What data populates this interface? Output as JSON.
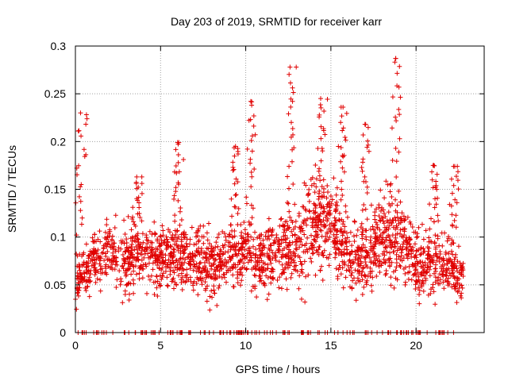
{
  "chart_data": {
    "type": "scatter",
    "title": "Day 203 of 2019, SRMTID for receiver karr",
    "xlabel": "GPS time / hours",
    "ylabel": "SRMTID / TECUs",
    "xlim": [
      0,
      24
    ],
    "ylim": [
      0,
      0.3
    ],
    "xticks": [
      0,
      5,
      10,
      15,
      20
    ],
    "yticks": [
      0,
      0.05,
      0.1,
      0.15,
      0.2,
      0.25,
      0.3
    ],
    "xtick_labels": [
      "0",
      "5",
      "10",
      "15",
      "20"
    ],
    "ytick_labels": [
      "0",
      "0.05",
      "0.1",
      "0.15",
      "0.2",
      "0.25",
      "0.3"
    ],
    "grid": true,
    "marker": "+",
    "series_color": "#e00000",
    "x_range_data": [
      0,
      22.8
    ],
    "envelope": {
      "note": "approximate typical level and spread of the point cloud by hour",
      "hours": [
        0,
        1,
        2,
        3,
        4,
        5,
        6,
        7,
        8,
        9,
        10,
        11,
        12,
        13,
        14,
        15,
        16,
        17,
        18,
        19,
        20,
        21,
        22,
        22.8
      ],
      "center": [
        0.05,
        0.075,
        0.085,
        0.075,
        0.08,
        0.075,
        0.085,
        0.08,
        0.07,
        0.08,
        0.085,
        0.075,
        0.085,
        0.09,
        0.11,
        0.115,
        0.085,
        0.075,
        0.1,
        0.1,
        0.07,
        0.075,
        0.07,
        0.06
      ],
      "spread": [
        0.02,
        0.025,
        0.03,
        0.03,
        0.03,
        0.03,
        0.03,
        0.03,
        0.03,
        0.03,
        0.03,
        0.03,
        0.035,
        0.04,
        0.045,
        0.04,
        0.035,
        0.03,
        0.04,
        0.04,
        0.03,
        0.03,
        0.03,
        0.02
      ]
    },
    "peaks": [
      {
        "x": 0.3,
        "y": 0.23
      },
      {
        "x": 3.6,
        "y": 0.163
      },
      {
        "x": 6.0,
        "y": 0.199
      },
      {
        "x": 9.4,
        "y": 0.195
      },
      {
        "x": 10.3,
        "y": 0.242
      },
      {
        "x": 12.6,
        "y": 0.278
      },
      {
        "x": 14.4,
        "y": 0.245
      },
      {
        "x": 15.6,
        "y": 0.236
      },
      {
        "x": 17.0,
        "y": 0.218
      },
      {
        "x": 18.8,
        "y": 0.287
      },
      {
        "x": 21.0,
        "y": 0.175
      },
      {
        "x": 22.2,
        "y": 0.174
      }
    ],
    "zero_value_points": "many points at y = 0 spread across 0 to 22.8 hours"
  }
}
